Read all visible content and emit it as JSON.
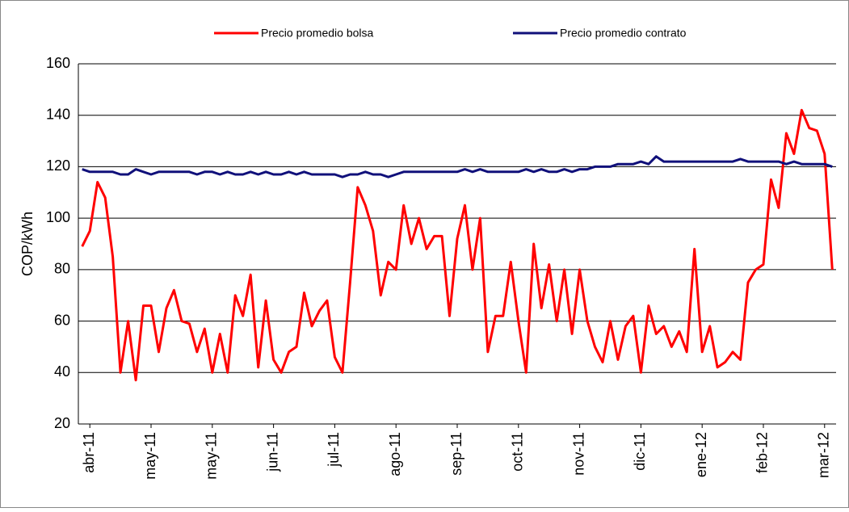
{
  "chart_data": {
    "type": "line",
    "y_label": "COP/kWh",
    "categories": [
      null,
      "abr-11",
      null,
      null,
      null,
      null,
      null,
      null,
      null,
      "may-11",
      null,
      null,
      null,
      null,
      null,
      null,
      null,
      "may-11",
      null,
      null,
      null,
      null,
      null,
      null,
      null,
      "jun-11",
      null,
      null,
      null,
      null,
      null,
      null,
      null,
      "jul-11",
      null,
      null,
      null,
      null,
      null,
      null,
      null,
      "ago-11",
      null,
      null,
      null,
      null,
      null,
      null,
      null,
      "sep-11",
      null,
      null,
      null,
      null,
      null,
      null,
      null,
      "oct-11",
      null,
      null,
      null,
      null,
      null,
      null,
      null,
      "nov-11",
      null,
      null,
      null,
      null,
      null,
      null,
      null,
      "dic-11",
      null,
      null,
      null,
      null,
      null,
      null,
      null,
      "ene-12",
      null,
      null,
      null,
      null,
      null,
      null,
      null,
      "feb-12",
      null,
      null,
      null,
      null,
      null,
      null,
      null,
      "mar-12",
      null
    ],
    "series": [
      {
        "name": "Precio promedio bolsa",
        "color": "#ff0000",
        "values": [
          89,
          95,
          114,
          108,
          85,
          40,
          60,
          37,
          66,
          66,
          48,
          65,
          72,
          60,
          59,
          48,
          57,
          40,
          55,
          40,
          70,
          62,
          78,
          42,
          68,
          45,
          40,
          48,
          50,
          71,
          58,
          64,
          68,
          46,
          40,
          75,
          112,
          105,
          95,
          70,
          83,
          80,
          105,
          90,
          100,
          88,
          93,
          93,
          62,
          92,
          105,
          80,
          100,
          48,
          62,
          62,
          83,
          60,
          40,
          90,
          65,
          82,
          60,
          80,
          55,
          80,
          60,
          50,
          44,
          60,
          45,
          58,
          62,
          40,
          66,
          55,
          58,
          50,
          56,
          48,
          88,
          48,
          58,
          42,
          44,
          48,
          45,
          75,
          80,
          82,
          115,
          104,
          133,
          125,
          142,
          135,
          134,
          125,
          80
        ]
      },
      {
        "name": "Precio promedio contrato",
        "color": "#10107a",
        "values": [
          119,
          118,
          118,
          118,
          118,
          117,
          117,
          119,
          118,
          117,
          118,
          118,
          118,
          118,
          118,
          117,
          118,
          118,
          117,
          118,
          117,
          117,
          118,
          117,
          118,
          117,
          117,
          118,
          117,
          118,
          117,
          117,
          117,
          117,
          116,
          117,
          117,
          118,
          117,
          117,
          116,
          117,
          118,
          118,
          118,
          118,
          118,
          118,
          118,
          118,
          119,
          118,
          119,
          118,
          118,
          118,
          118,
          118,
          119,
          118,
          119,
          118,
          118,
          119,
          118,
          119,
          119,
          120,
          120,
          120,
          121,
          121,
          121,
          122,
          121,
          124,
          122,
          122,
          122,
          122,
          122,
          122,
          122,
          122,
          122,
          122,
          123,
          122,
          122,
          122,
          122,
          122,
          121,
          122,
          121,
          121,
          121,
          121,
          120
        ]
      }
    ],
    "ylim": [
      20,
      160
    ],
    "yticks": [
      20,
      40,
      60,
      80,
      100,
      120,
      140,
      160
    ],
    "grid": true,
    "legend": "top"
  }
}
